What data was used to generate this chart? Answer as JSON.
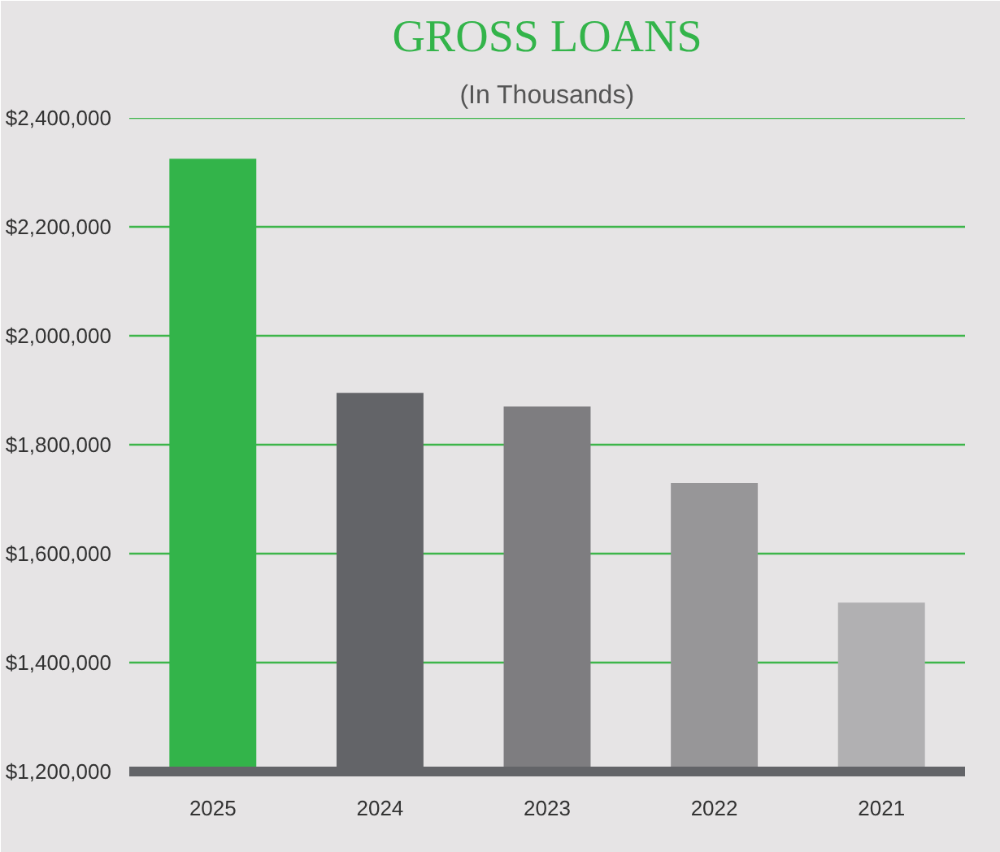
{
  "chart_data": {
    "type": "bar",
    "title": "GROSS LOANS",
    "subtitle": "(In Thousands)",
    "categories": [
      "2025",
      "2024",
      "2023",
      "2022",
      "2021"
    ],
    "values": [
      2325000,
      1895000,
      1870000,
      1730000,
      1510000
    ],
    "colors": [
      "#33b44a",
      "#636468",
      "#7e7d80",
      "#979698",
      "#b1b0b2"
    ],
    "ylim": [
      1200000,
      2400000
    ],
    "yticks": [
      {
        "value": 1200000,
        "label": "$1,200,000"
      },
      {
        "value": 1400000,
        "label": "$1,400,000"
      },
      {
        "value": 1600000,
        "label": "$1,600,000"
      },
      {
        "value": 1800000,
        "label": "$1,800,000"
      },
      {
        "value": 2000000,
        "label": "$2,000,000"
      },
      {
        "value": 2200000,
        "label": "$2,200,000"
      },
      {
        "value": 2400000,
        "label": "$2,400,000"
      }
    ],
    "grid": "y"
  }
}
